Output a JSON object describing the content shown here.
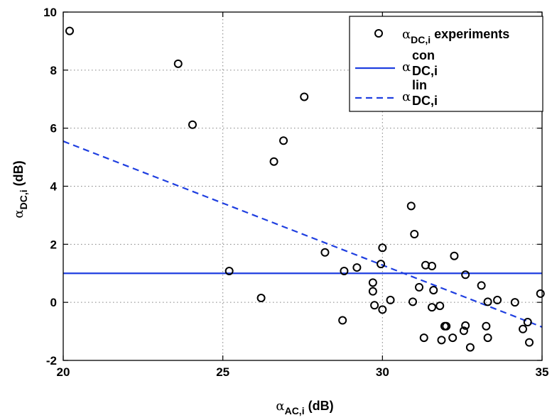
{
  "chart_data": {
    "type": "scatter",
    "xlim": [
      20,
      35
    ],
    "ylim": [
      -2,
      10
    ],
    "xticks": [
      20,
      25,
      30,
      35
    ],
    "yticks": [
      -2,
      0,
      2,
      4,
      6,
      8,
      10
    ],
    "grid": true,
    "legend_position": "top-right",
    "xlabel": {
      "symbol": "α",
      "sub": "AC,i",
      "unit": " (dB)"
    },
    "ylabel": {
      "symbol": "α",
      "sub": "DC,i",
      "unit": " (dB)"
    },
    "colors": {
      "fit_lines": "#1f3fe0",
      "markers": "#000000",
      "grid": "#808080"
    },
    "series": [
      {
        "name": "α DC,i experiments",
        "legend": {
          "symbol": "α",
          "sub": "DC,i",
          "sup": "",
          "text": " experiments"
        },
        "style": "open-circle",
        "points": [
          [
            20.2,
            9.35
          ],
          [
            23.6,
            8.22
          ],
          [
            24.05,
            6.12
          ],
          [
            27.55,
            7.08
          ],
          [
            26.9,
            5.57
          ],
          [
            26.6,
            4.85
          ],
          [
            25.2,
            1.08
          ],
          [
            26.2,
            0.15
          ],
          [
            28.2,
            1.72
          ],
          [
            28.8,
            1.08
          ],
          [
            29.2,
            1.2
          ],
          [
            28.75,
            -0.62
          ],
          [
            29.7,
            0.68
          ],
          [
            29.7,
            0.38
          ],
          [
            29.75,
            -0.1
          ],
          [
            29.95,
            1.32
          ],
          [
            30.0,
            1.88
          ],
          [
            30.0,
            -0.25
          ],
          [
            30.25,
            0.08
          ],
          [
            30.9,
            3.32
          ],
          [
            30.95,
            0.02
          ],
          [
            31.0,
            2.35
          ],
          [
            31.15,
            0.52
          ],
          [
            31.35,
            1.28
          ],
          [
            31.3,
            -1.22
          ],
          [
            31.55,
            1.25
          ],
          [
            31.6,
            0.42
          ],
          [
            31.55,
            -0.17
          ],
          [
            31.8,
            -0.12
          ],
          [
            31.85,
            -1.3
          ],
          [
            31.95,
            -0.82
          ],
          [
            32.0,
            -0.82
          ],
          [
            32.2,
            -1.22
          ],
          [
            32.25,
            1.6
          ],
          [
            32.6,
            0.95
          ],
          [
            32.55,
            -0.98
          ],
          [
            32.6,
            -0.8
          ],
          [
            32.75,
            -1.55
          ],
          [
            33.1,
            0.58
          ],
          [
            33.25,
            -0.82
          ],
          [
            33.3,
            0.02
          ],
          [
            33.3,
            -1.22
          ],
          [
            33.6,
            0.08
          ],
          [
            34.15,
            0.0
          ],
          [
            34.4,
            -0.92
          ],
          [
            34.55,
            -0.68
          ],
          [
            34.6,
            -1.38
          ],
          [
            34.95,
            0.3
          ]
        ]
      },
      {
        "name": "α con DC,i",
        "legend": {
          "symbol": "α",
          "sub": "DC,i",
          "sup": "con",
          "text": ""
        },
        "style": "solid",
        "points": [
          [
            20,
            1.0
          ],
          [
            35,
            1.0
          ]
        ]
      },
      {
        "name": "α lin DC,i",
        "legend": {
          "symbol": "α",
          "sub": "DC,i",
          "sup": "lin",
          "text": ""
        },
        "style": "dashed",
        "points": [
          [
            20,
            5.55
          ],
          [
            35,
            -0.85
          ]
        ]
      }
    ]
  }
}
